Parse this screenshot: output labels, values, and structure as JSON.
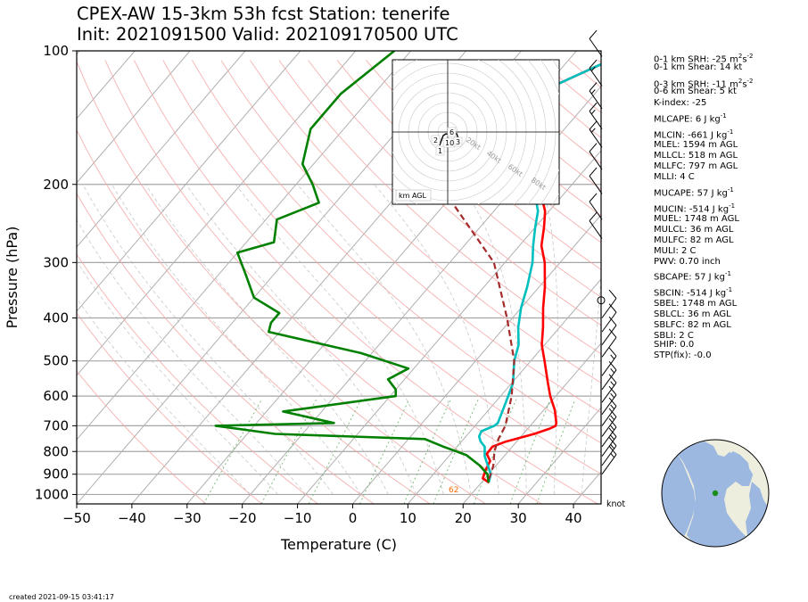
{
  "title_line1": "CPEX-AW 15-3km  53h fcst  Station: tenerife",
  "title_line2": "Init: 2021091500  Valid: 202109170500 UTC",
  "created": "created 2021-09-15 03:41:17",
  "wind_unit": "knot",
  "hodograph": {
    "ring_labels": [
      "20kt",
      "40kt",
      "60kt",
      "80kt"
    ],
    "legend": "km AGL",
    "height_labels": [
      "6",
      "2",
      "10",
      "3",
      "1"
    ]
  },
  "indices": [
    {
      "text": "0-1 km SRH: -25 m",
      "sup": "2",
      "text2": "s",
      "sup2": "-2"
    },
    {
      "text": "0-1 km Shear: 14 kt"
    },
    {
      "text": "0-3 km SRH: -11 m",
      "sup": "2",
      "text2": "s",
      "sup2": "-2"
    },
    {
      "text": "0-6 km Shear: 5 kt"
    },
    {
      "text": "K-index: -25"
    },
    {
      "text": "MLCAPE: 6 J kg",
      "sup": "-1"
    },
    {
      "text": "MLCIN: -661 J kg",
      "sup": "-1"
    },
    {
      "text": "MLEL: 1594 m AGL"
    },
    {
      "text": "MLLCL: 518 m AGL"
    },
    {
      "text": "MLLFC: 797 m AGL"
    },
    {
      "text": "MLLI: 4 C"
    },
    {
      "text": "MUCAPE: 57 J kg",
      "sup": "-1"
    },
    {
      "text": "MUCIN: -514 J kg",
      "sup": "-1"
    },
    {
      "text": "MUEL: 1748 m AGL"
    },
    {
      "text": "MULCL: 36 m AGL"
    },
    {
      "text": "MULFC: 82 m AGL"
    },
    {
      "text": "MULI: 2 C"
    },
    {
      "text": "PWV: 0.70 inch"
    },
    {
      "text": "SBCAPE: 57 J kg",
      "sup": "-1"
    },
    {
      "text": "SBCIN: -514 J kg",
      "sup": "-1"
    },
    {
      "text": "SBEL: 1748 m AGL"
    },
    {
      "text": "SBLCL: 36 m AGL"
    },
    {
      "text": "SBLFC: 82 m AGL"
    },
    {
      "text": "SBLI: 2 C"
    },
    {
      "text": "SHIP: 0.0"
    },
    {
      "text": "STP(fix): -0.0"
    }
  ],
  "chart_data": {
    "type": "line",
    "subtype": "skew-T log-P diagram",
    "xlabel": "Temperature (C)",
    "ylabel": "Pressure (hPa)",
    "xlim": [
      -50,
      45
    ],
    "ylim": [
      1050,
      100
    ],
    "yscale": "log",
    "x_ticks": [
      -50,
      -40,
      -30,
      -20,
      -10,
      0,
      10,
      20,
      30,
      40
    ],
    "y_ticks": [
      100,
      200,
      300,
      400,
      500,
      600,
      700,
      800,
      900,
      1000
    ],
    "surface_labels": [
      "62"
    ],
    "colors": {
      "temperature": "#ff0000",
      "dewpoint": "#008000",
      "wetbulb": "#00bfbf",
      "parcel": "#a52a2a",
      "isotherm": "#b0b0b0",
      "dry_adiabat": "#f4a6a6",
      "moist_adiabat": "#b0b0b0",
      "mixing_ratio": "#7fbf7f"
    },
    "series": [
      {
        "key": "temperature",
        "points": [
          [
            -20.2,
            100
          ],
          [
            -30.6,
            125
          ],
          [
            -29.5,
            150
          ],
          [
            -21.6,
            180
          ],
          [
            -16,
            200
          ],
          [
            -10.7,
            230
          ],
          [
            -8.4,
            250
          ],
          [
            -6,
            275
          ],
          [
            -2.8,
            300
          ],
          [
            1,
            340
          ],
          [
            4,
            380
          ],
          [
            7,
            420
          ],
          [
            9.5,
            460
          ],
          [
            12.5,
            500
          ],
          [
            16.5,
            560
          ],
          [
            19,
            600
          ],
          [
            22,
            645
          ],
          [
            24.3,
            690
          ],
          [
            24.6,
            700
          ],
          [
            24,
            710
          ],
          [
            22,
            730
          ],
          [
            20,
            745
          ],
          [
            18,
            760
          ],
          [
            16.4,
            780
          ],
          [
            16.5,
            810
          ],
          [
            18.2,
            840
          ],
          [
            18.8,
            880
          ],
          [
            19.6,
            920
          ],
          [
            21.4,
            940
          ]
        ]
      },
      {
        "key": "wetbulb",
        "points": [
          [
            -20.2,
            100
          ],
          [
            -30.6,
            125
          ],
          [
            -29.5,
            150
          ],
          [
            -21.7,
            180
          ],
          [
            -17,
            200
          ],
          [
            -12,
            230
          ],
          [
            -10,
            250
          ],
          [
            -7.5,
            275
          ],
          [
            -5,
            300
          ],
          [
            -2.2,
            340
          ],
          [
            0,
            380
          ],
          [
            2.5,
            420
          ],
          [
            5.3,
            460
          ],
          [
            7,
            500
          ],
          [
            10.2,
            560
          ],
          [
            11.4,
            600
          ],
          [
            12.6,
            645
          ],
          [
            13.7,
            690
          ],
          [
            13.5,
            700
          ],
          [
            12,
            720
          ],
          [
            12.4,
            740
          ],
          [
            13.5,
            760
          ],
          [
            15,
            780
          ],
          [
            16.5,
            820
          ],
          [
            18.5,
            860
          ],
          [
            20.4,
            900
          ],
          [
            21.3,
            940
          ]
        ]
      },
      {
        "key": "dewpoint",
        "points": [
          [
            -63,
            100
          ],
          [
            -66,
            125
          ],
          [
            -66,
            150
          ],
          [
            -62,
            180
          ],
          [
            -57,
            200
          ],
          [
            -53,
            220
          ],
          [
            -58,
            240
          ],
          [
            -55,
            270
          ],
          [
            -60,
            285
          ],
          [
            -55,
            320
          ],
          [
            -50,
            360
          ],
          [
            -43,
            390
          ],
          [
            -43,
            410
          ],
          [
            -42,
            430
          ],
          [
            -22,
            480
          ],
          [
            -11,
            520
          ],
          [
            -13,
            550
          ],
          [
            -10,
            580
          ],
          [
            -9,
            600
          ],
          [
            -27,
            650
          ],
          [
            -16,
            690
          ],
          [
            -37,
            700
          ],
          [
            -25,
            730
          ],
          [
            3,
            750
          ],
          [
            7.5,
            780
          ],
          [
            13,
            815
          ],
          [
            17,
            860
          ],
          [
            19.8,
            900
          ],
          [
            21.3,
            940
          ]
        ]
      },
      {
        "key": "parcel",
        "dashed": true,
        "points": [
          [
            -47,
            125
          ],
          [
            -34,
            200
          ],
          [
            -12,
            300
          ],
          [
            -1,
            400
          ],
          [
            7,
            500
          ],
          [
            12,
            600
          ],
          [
            15.5,
            700
          ],
          [
            16.3,
            750
          ],
          [
            17.5,
            800
          ],
          [
            19.5,
            860
          ],
          [
            21.2,
            940
          ]
        ]
      }
    ],
    "wind_barbs": [
      {
        "p": 103,
        "speed": 10
      },
      {
        "p": 120,
        "speed": 15
      },
      {
        "p": 135,
        "speed": 15
      },
      {
        "p": 150,
        "speed": 15
      },
      {
        "p": 165,
        "speed": 15
      },
      {
        "p": 185,
        "speed": 10
      },
      {
        "p": 210,
        "speed": 10
      },
      {
        "p": 240,
        "speed": 10
      },
      {
        "p": 265,
        "speed": 10
      },
      {
        "p": 365,
        "speed": 0
      },
      {
        "p": 400,
        "speed": 10
      },
      {
        "p": 430,
        "speed": 10
      },
      {
        "p": 460,
        "speed": 10
      },
      {
        "p": 490,
        "speed": 10
      },
      {
        "p": 540,
        "speed": 15
      },
      {
        "p": 580,
        "speed": 15
      },
      {
        "p": 620,
        "speed": 15
      },
      {
        "p": 660,
        "speed": 15
      },
      {
        "p": 700,
        "speed": 15
      },
      {
        "p": 740,
        "speed": 15
      },
      {
        "p": 780,
        "speed": 15
      },
      {
        "p": 820,
        "speed": 15
      },
      {
        "p": 860,
        "speed": 15
      },
      {
        "p": 900,
        "speed": 15
      }
    ]
  }
}
